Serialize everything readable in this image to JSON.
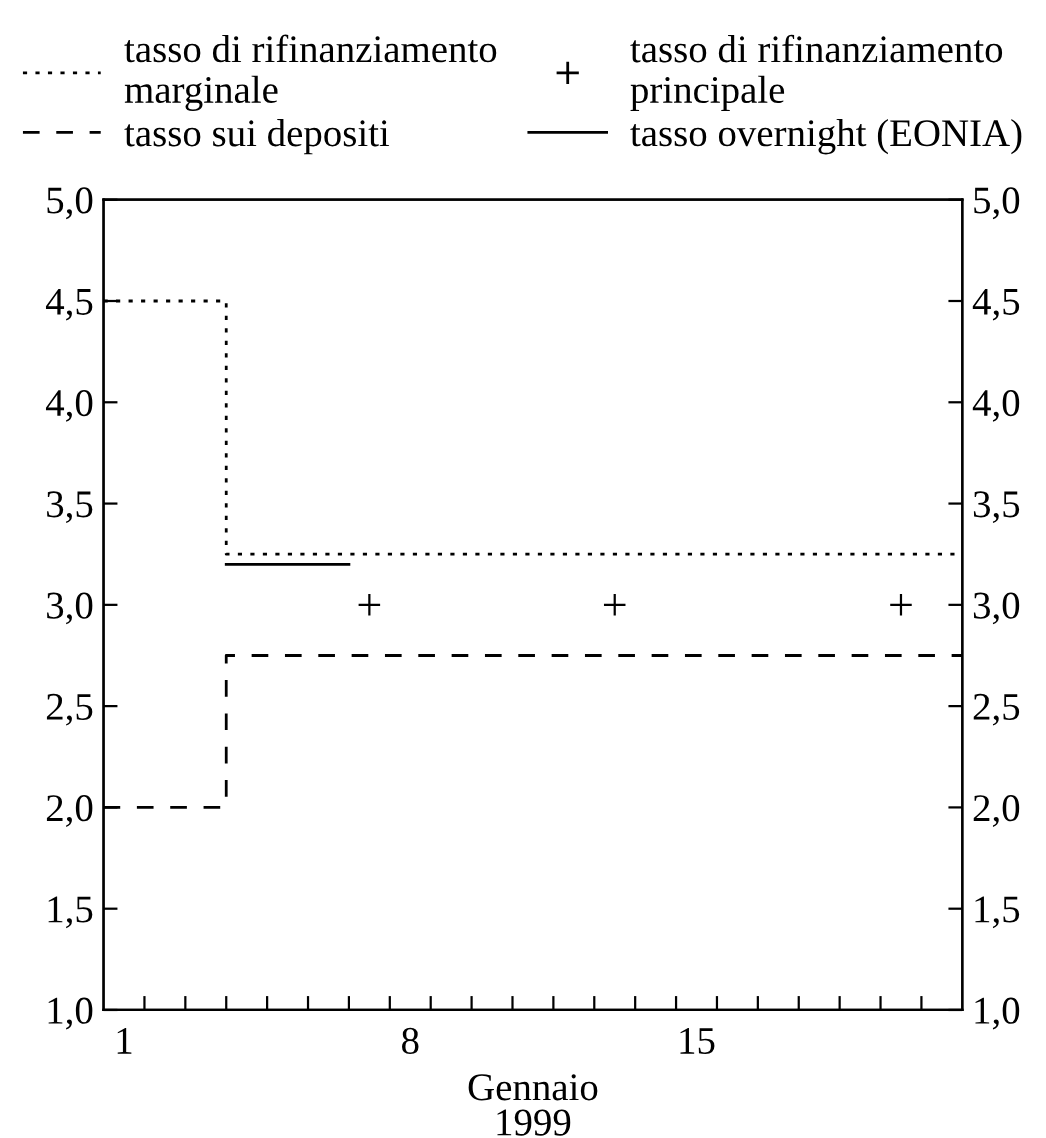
{
  "chart_data": {
    "type": "step",
    "xlabel": "Gennaio\n1999",
    "series": [
      {
        "name": "tasso di rifinanziamento\nmarginale",
        "color": "#000000",
        "line_style": "dotted",
        "x": [
          0.5,
          3.5,
          21.5
        ],
        "values": [
          4.5,
          3.25,
          3.25
        ]
      },
      {
        "name": "tasso di rifinanziamento\nprincipale",
        "type": "scatter",
        "color": "#000000",
        "marker": "cross",
        "x": [
          7,
          13,
          20
        ],
        "values": [
          3.0,
          3.0,
          3.0
        ]
      },
      {
        "name": "tasso sui depositi",
        "color": "#000000",
        "line_style": "dashed",
        "x": [
          0.5,
          3.5,
          21.5
        ],
        "values": [
          2.0,
          2.75,
          2.75
        ]
      },
      {
        "name": "tasso overnight (EONIA)",
        "color": "#000000",
        "line_style": "solid",
        "x": [
          3.5,
          6.5
        ],
        "values": [
          3.2,
          3.2
        ]
      }
    ],
    "xlim": [
      0.5,
      21.5
    ],
    "xticks": [
      {
        "value": 1,
        "label": "1"
      },
      {
        "value": 8,
        "label": "8"
      },
      {
        "value": 15,
        "label": "15"
      },
      {
        "value": 1.5,
        "label": null
      },
      {
        "value": 2.5,
        "label": null
      },
      {
        "value": 3.5,
        "label": null
      },
      {
        "value": 4.5,
        "label": null
      },
      {
        "value": 5.5,
        "label": null
      },
      {
        "value": 6.5,
        "label": null
      },
      {
        "value": 7.5,
        "label": null
      },
      {
        "value": 8.5,
        "label": null
      },
      {
        "value": 9.5,
        "label": null
      },
      {
        "value": 10.5,
        "label": null
      },
      {
        "value": 11.5,
        "label": null
      },
      {
        "value": 12.5,
        "label": null
      },
      {
        "value": 13.5,
        "label": null
      },
      {
        "value": 14.5,
        "label": null
      },
      {
        "value": 15.5,
        "label": null
      },
      {
        "value": 16.5,
        "label": null
      },
      {
        "value": 17.5,
        "label": null
      },
      {
        "value": 18.5,
        "label": null
      },
      {
        "value": 19.5,
        "label": null
      },
      {
        "value": 20.5,
        "label": null
      }
    ],
    "ylim": [
      1.0,
      5.0
    ],
    "yticks": [
      {
        "value": 1.0,
        "label": "1,0"
      },
      {
        "value": 1.5,
        "label": "1,5"
      },
      {
        "value": 2.0,
        "label": "2,0"
      },
      {
        "value": 2.5,
        "label": "2,5"
      },
      {
        "value": 3.0,
        "label": "3,0"
      },
      {
        "value": 3.5,
        "label": "3,5"
      },
      {
        "value": 4.0,
        "label": "4,0"
      },
      {
        "value": 4.5,
        "label": "4,5"
      },
      {
        "value": 5.0,
        "label": "5,0"
      }
    ],
    "y2lim": [
      1.0,
      5.0
    ],
    "y2ticks": [
      {
        "value": 1.0,
        "label": "1,0"
      },
      {
        "value": 1.5,
        "label": "1,5"
      },
      {
        "value": 2.0,
        "label": "2,0"
      },
      {
        "value": 2.5,
        "label": "2,5"
      },
      {
        "value": 3.0,
        "label": "3,0"
      },
      {
        "value": 3.5,
        "label": "3,5"
      },
      {
        "value": 4.0,
        "label": "4,0"
      },
      {
        "value": 4.5,
        "label": "4,5"
      },
      {
        "value": 5.0,
        "label": "5,0"
      }
    ],
    "grid": false,
    "legend": "top"
  }
}
